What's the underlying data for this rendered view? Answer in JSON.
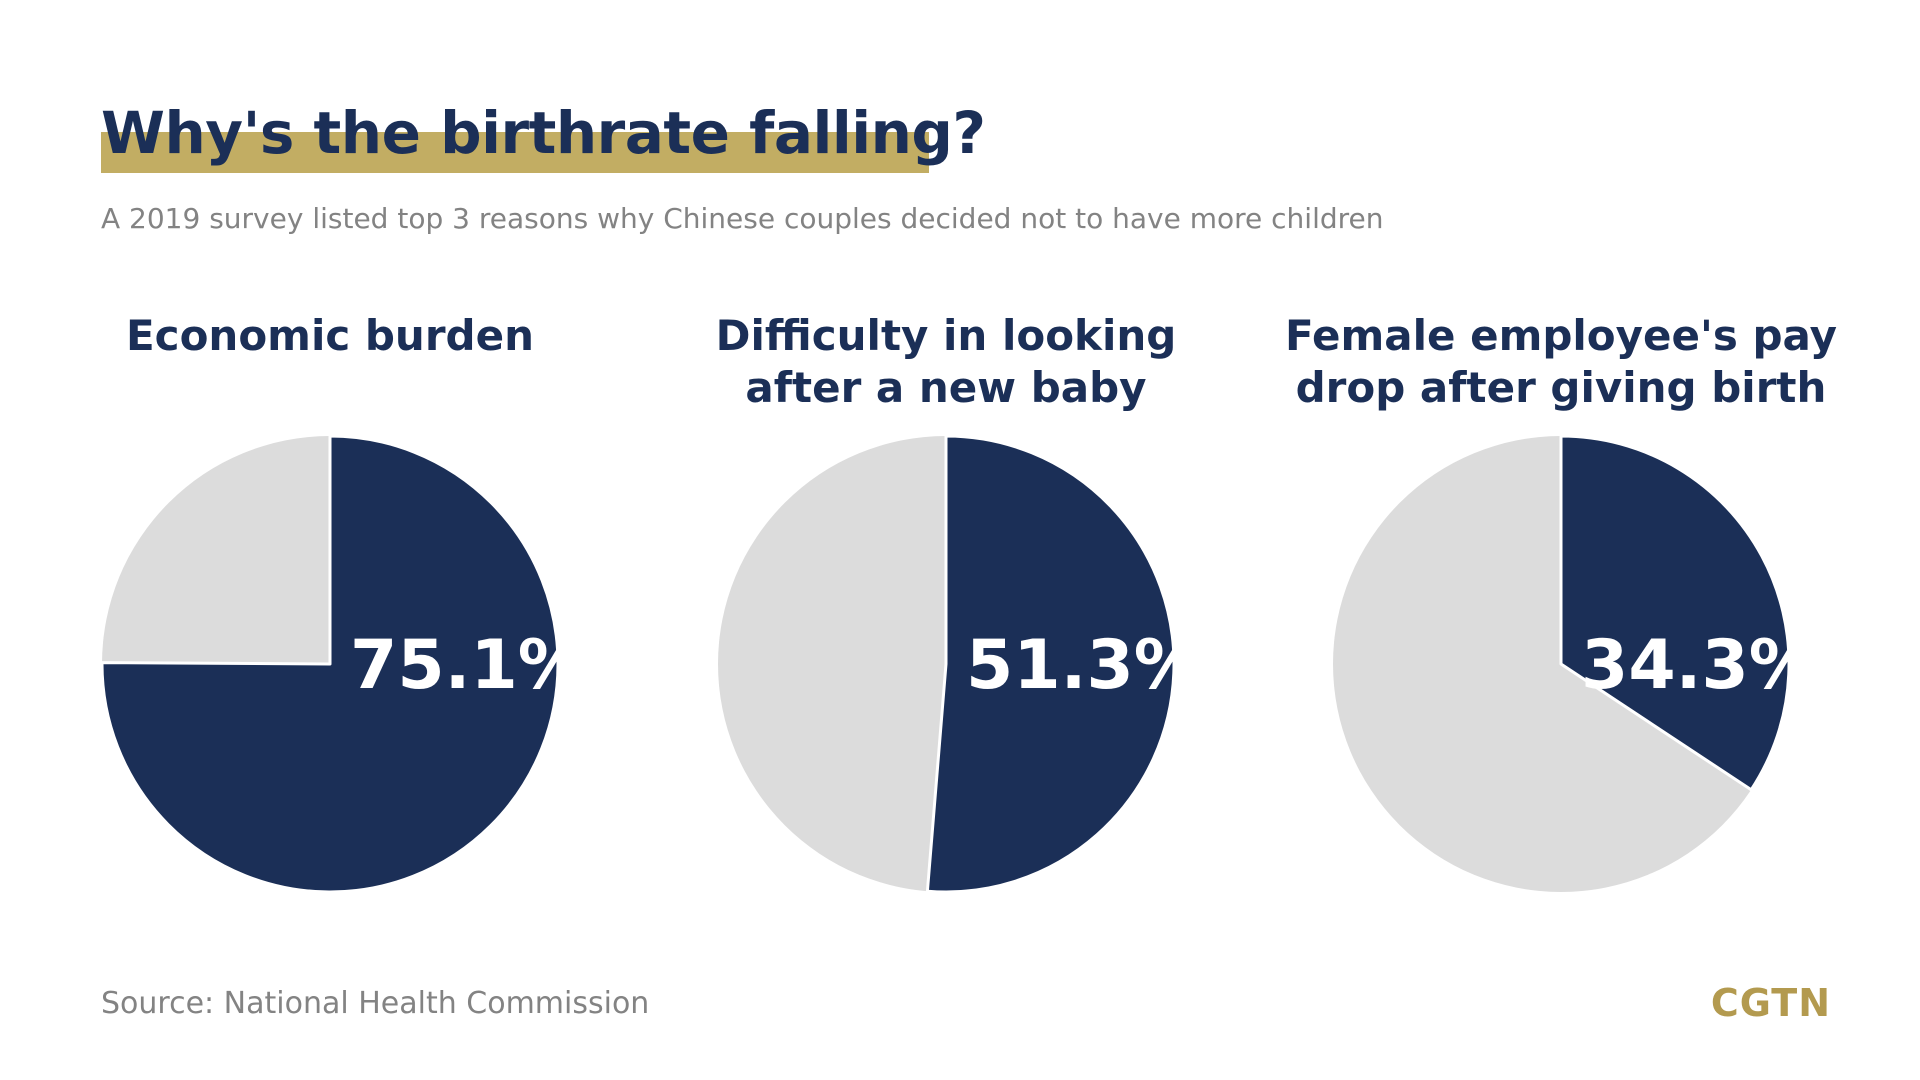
{
  "header": {
    "title": "Why's the birthrate falling?",
    "subtitle": "A 2019 survey listed top 3 reasons why Chinese couples decided not to have more children"
  },
  "footer": {
    "source": "Source: National Health Commission",
    "logo": "CGTN"
  },
  "colors": {
    "highlight_bar": "#c2ad63",
    "primary": "#1b2f57",
    "remainder": "#dcdcdc",
    "logo": "#b39a4f"
  },
  "chart_data": [
    {
      "type": "pie",
      "title": "Economic burden",
      "value": 75.1,
      "label": "75.1%"
    },
    {
      "type": "pie",
      "title": "Difficulty in looking\nafter a new baby",
      "value": 51.3,
      "label": "51.3%"
    },
    {
      "type": "pie",
      "title": "Female employee's pay\ndrop after giving birth",
      "value": 34.3,
      "label": "34.3%"
    }
  ]
}
